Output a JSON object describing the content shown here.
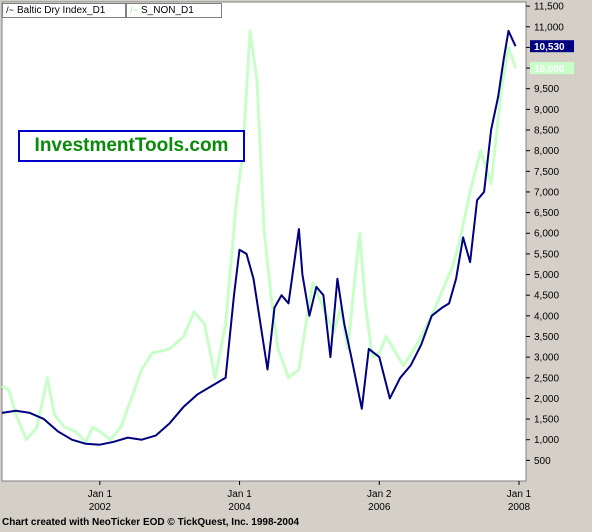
{
  "legend": {
    "series1": "Baltic Dry Index_D1",
    "series2": "S_NON_D1"
  },
  "watermark": "InvestmentTools.com",
  "footer": "Chart created with NeoTicker EOD © TickQuest, Inc. 1998-2004",
  "colors": {
    "background": "#ffffff",
    "series1": "#000080",
    "series2": "#c8ffc8",
    "frame": "#d4d0c8"
  },
  "chart_data": {
    "type": "line",
    "title": "",
    "xlabel": "",
    "ylabel": "",
    "x_ticks": [
      {
        "lines": [
          "Jan 1",
          "2002"
        ],
        "x": 2002.0
      },
      {
        "lines": [
          "Jan 1",
          "2004"
        ],
        "x": 2004.0
      },
      {
        "lines": [
          "Jan 2",
          "2006"
        ],
        "x": 2006.0
      },
      {
        "lines": [
          "Jan 1",
          "2008"
        ],
        "x": 2008.0
      }
    ],
    "y_ticks": [
      "500",
      "1,000",
      "1,500",
      "2,000",
      "2,500",
      "3,000",
      "3,500",
      "4,000",
      "4,500",
      "5,000",
      "5,500",
      "6,000",
      "6,500",
      "7,000",
      "7,500",
      "8,000",
      "8,500",
      "9,000",
      "9,500",
      "10,000",
      "10,500",
      "11,000",
      "11,500"
    ],
    "xlim": [
      2000.6,
      2008.1
    ],
    "ylim": [
      0,
      11600
    ],
    "last_labels": [
      {
        "text": "10,530",
        "value": 10530,
        "series": "series1"
      },
      {
        "text": "10,000",
        "value": 10000,
        "series": "series2"
      }
    ],
    "series": [
      {
        "name": "Baltic Dry Index_D1",
        "color": "#000080",
        "points": [
          [
            2000.6,
            1650
          ],
          [
            2000.8,
            1700
          ],
          [
            2001.0,
            1650
          ],
          [
            2001.2,
            1500
          ],
          [
            2001.4,
            1200
          ],
          [
            2001.6,
            1000
          ],
          [
            2001.8,
            900
          ],
          [
            2002.0,
            880
          ],
          [
            2002.2,
            950
          ],
          [
            2002.4,
            1050
          ],
          [
            2002.6,
            1000
          ],
          [
            2002.8,
            1100
          ],
          [
            2003.0,
            1400
          ],
          [
            2003.2,
            1800
          ],
          [
            2003.4,
            2100
          ],
          [
            2003.6,
            2300
          ],
          [
            2003.8,
            2500
          ],
          [
            2003.92,
            4500
          ],
          [
            2004.0,
            5600
          ],
          [
            2004.1,
            5500
          ],
          [
            2004.2,
            4900
          ],
          [
            2004.3,
            3800
          ],
          [
            2004.4,
            2700
          ],
          [
            2004.5,
            4200
          ],
          [
            2004.6,
            4500
          ],
          [
            2004.7,
            4300
          ],
          [
            2004.85,
            6100
          ],
          [
            2004.9,
            5000
          ],
          [
            2005.0,
            4000
          ],
          [
            2005.1,
            4700
          ],
          [
            2005.2,
            4500
          ],
          [
            2005.3,
            3000
          ],
          [
            2005.4,
            4900
          ],
          [
            2005.5,
            3800
          ],
          [
            2005.6,
            3000
          ],
          [
            2005.75,
            1750
          ],
          [
            2005.85,
            3200
          ],
          [
            2006.0,
            3000
          ],
          [
            2006.15,
            2000
          ],
          [
            2006.3,
            2500
          ],
          [
            2006.45,
            2800
          ],
          [
            2006.6,
            3300
          ],
          [
            2006.75,
            4000
          ],
          [
            2006.9,
            4200
          ],
          [
            2007.0,
            4300
          ],
          [
            2007.1,
            4900
          ],
          [
            2007.2,
            5900
          ],
          [
            2007.3,
            5300
          ],
          [
            2007.4,
            6800
          ],
          [
            2007.5,
            7000
          ],
          [
            2007.6,
            8500
          ],
          [
            2007.7,
            9300
          ],
          [
            2007.78,
            10200
          ],
          [
            2007.85,
            10900
          ],
          [
            2007.95,
            10530
          ]
        ]
      },
      {
        "name": "S_NON_D1",
        "color": "#c8ffc8",
        "points": [
          [
            2000.6,
            2300
          ],
          [
            2000.7,
            2200
          ],
          [
            2000.8,
            1600
          ],
          [
            2000.95,
            1000
          ],
          [
            2001.1,
            1300
          ],
          [
            2001.25,
            2500
          ],
          [
            2001.35,
            1600
          ],
          [
            2001.5,
            1300
          ],
          [
            2001.65,
            1200
          ],
          [
            2001.8,
            950
          ],
          [
            2001.9,
            1300
          ],
          [
            2002.0,
            1200
          ],
          [
            2002.15,
            1000
          ],
          [
            2002.3,
            1300
          ],
          [
            2002.45,
            2000
          ],
          [
            2002.6,
            2700
          ],
          [
            2002.75,
            3100
          ],
          [
            2003.0,
            3200
          ],
          [
            2003.2,
            3500
          ],
          [
            2003.35,
            4100
          ],
          [
            2003.5,
            3800
          ],
          [
            2003.65,
            2500
          ],
          [
            2003.8,
            3800
          ],
          [
            2003.95,
            6700
          ],
          [
            2004.05,
            8000
          ],
          [
            2004.15,
            10900
          ],
          [
            2004.25,
            9700
          ],
          [
            2004.35,
            6100
          ],
          [
            2004.45,
            4500
          ],
          [
            2004.55,
            3200
          ],
          [
            2004.7,
            2500
          ],
          [
            2004.85,
            2700
          ],
          [
            2004.95,
            3800
          ],
          [
            2005.05,
            4800
          ],
          [
            2005.15,
            4400
          ],
          [
            2005.25,
            4000
          ],
          [
            2005.35,
            3600
          ],
          [
            2005.45,
            4200
          ],
          [
            2005.55,
            3200
          ],
          [
            2005.65,
            4900
          ],
          [
            2005.72,
            6000
          ],
          [
            2005.8,
            4300
          ],
          [
            2005.9,
            3000
          ],
          [
            2006.0,
            3100
          ],
          [
            2006.1,
            3500
          ],
          [
            2006.2,
            3200
          ],
          [
            2006.35,
            2800
          ],
          [
            2006.5,
            3200
          ],
          [
            2006.6,
            3500
          ],
          [
            2006.75,
            4000
          ],
          [
            2006.9,
            4600
          ],
          [
            2007.05,
            5200
          ],
          [
            2007.15,
            5800
          ],
          [
            2007.3,
            7000
          ],
          [
            2007.45,
            8000
          ],
          [
            2007.6,
            7200
          ],
          [
            2007.75,
            9500
          ],
          [
            2007.85,
            10500
          ],
          [
            2007.95,
            10000
          ]
        ]
      }
    ]
  }
}
